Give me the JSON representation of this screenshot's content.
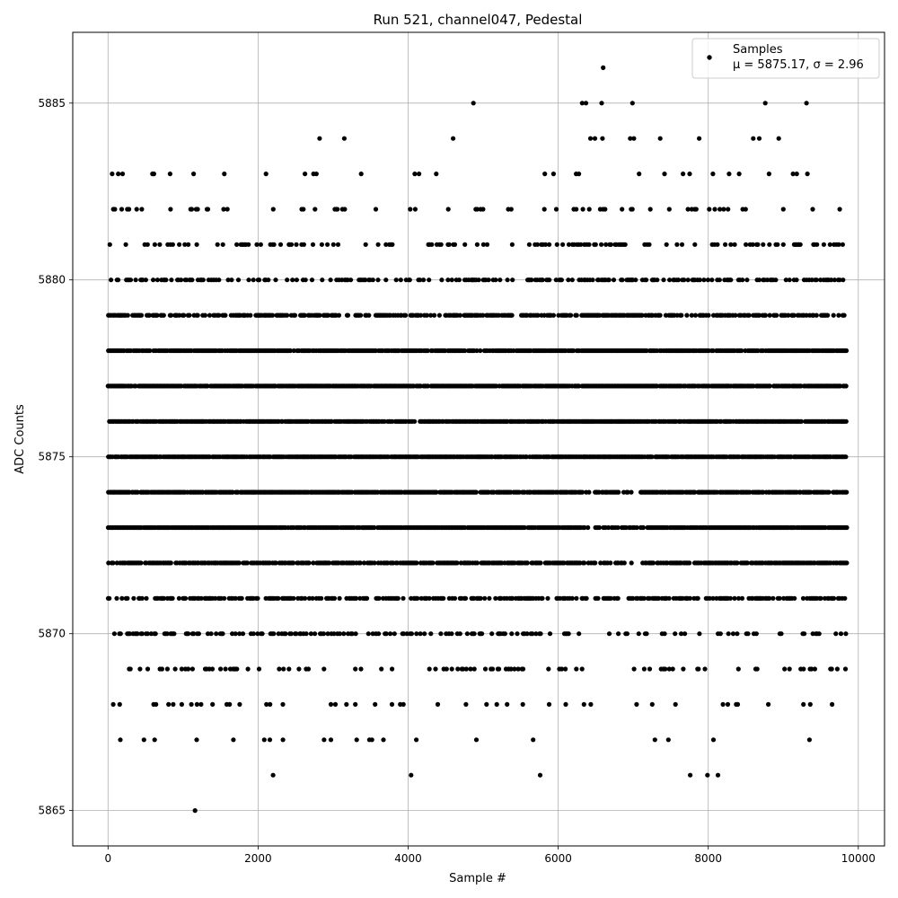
{
  "chart_data": {
    "type": "scatter",
    "title": "Run 521, channel047, Pedestal",
    "xlabel": "Sample #",
    "ylabel": "ADC Counts",
    "xlim": [
      -470,
      10350
    ],
    "ylim": [
      5864,
      5887
    ],
    "xticks": [
      0,
      2000,
      4000,
      6000,
      8000,
      10000
    ],
    "yticks": [
      5865,
      5870,
      5875,
      5880,
      5885
    ],
    "xtick_labels": [
      "0",
      "2000",
      "4000",
      "6000",
      "8000",
      "10000"
    ],
    "ytick_labels": [
      "5865",
      "5870",
      "5875",
      "5880",
      "5885"
    ],
    "grid": true,
    "legend": {
      "placement": "top-right",
      "series_label": "Samples",
      "stats_label": "μ = 5875.17, σ = 2.96"
    },
    "series": [
      {
        "name": "Samples",
        "color": "#000000",
        "stats": {
          "mean": 5875.17,
          "sigma": 2.96
        },
        "sample_range": [
          0,
          9850
        ],
        "band_levels": [
          5867,
          5868,
          5869,
          5870,
          5871,
          5872,
          5873,
          5874,
          5875,
          5876,
          5877,
          5878,
          5879,
          5880,
          5881,
          5882,
          5883
        ],
        "isolated_points": [
          [
            1160,
            5865
          ],
          [
            2200,
            5866
          ],
          [
            4040,
            5866
          ],
          [
            5760,
            5866
          ],
          [
            7760,
            5866
          ],
          [
            7990,
            5866
          ],
          [
            8130,
            5866
          ],
          [
            4870,
            5885
          ],
          [
            6320,
            5885
          ],
          [
            6370,
            5885
          ],
          [
            6580,
            5885
          ],
          [
            6990,
            5885
          ],
          [
            8760,
            5885
          ],
          [
            9310,
            5885
          ],
          [
            6600,
            5886
          ],
          [
            2820,
            5884
          ],
          [
            3150,
            5884
          ],
          [
            4600,
            5884
          ],
          [
            6430,
            5884
          ],
          [
            6490,
            5884
          ],
          [
            6590,
            5884
          ],
          [
            6960,
            5884
          ],
          [
            7010,
            5884
          ],
          [
            7360,
            5884
          ],
          [
            7880,
            5884
          ],
          [
            8600,
            5884
          ],
          [
            8680,
            5884
          ],
          [
            8940,
            5884
          ]
        ]
      }
    ]
  }
}
